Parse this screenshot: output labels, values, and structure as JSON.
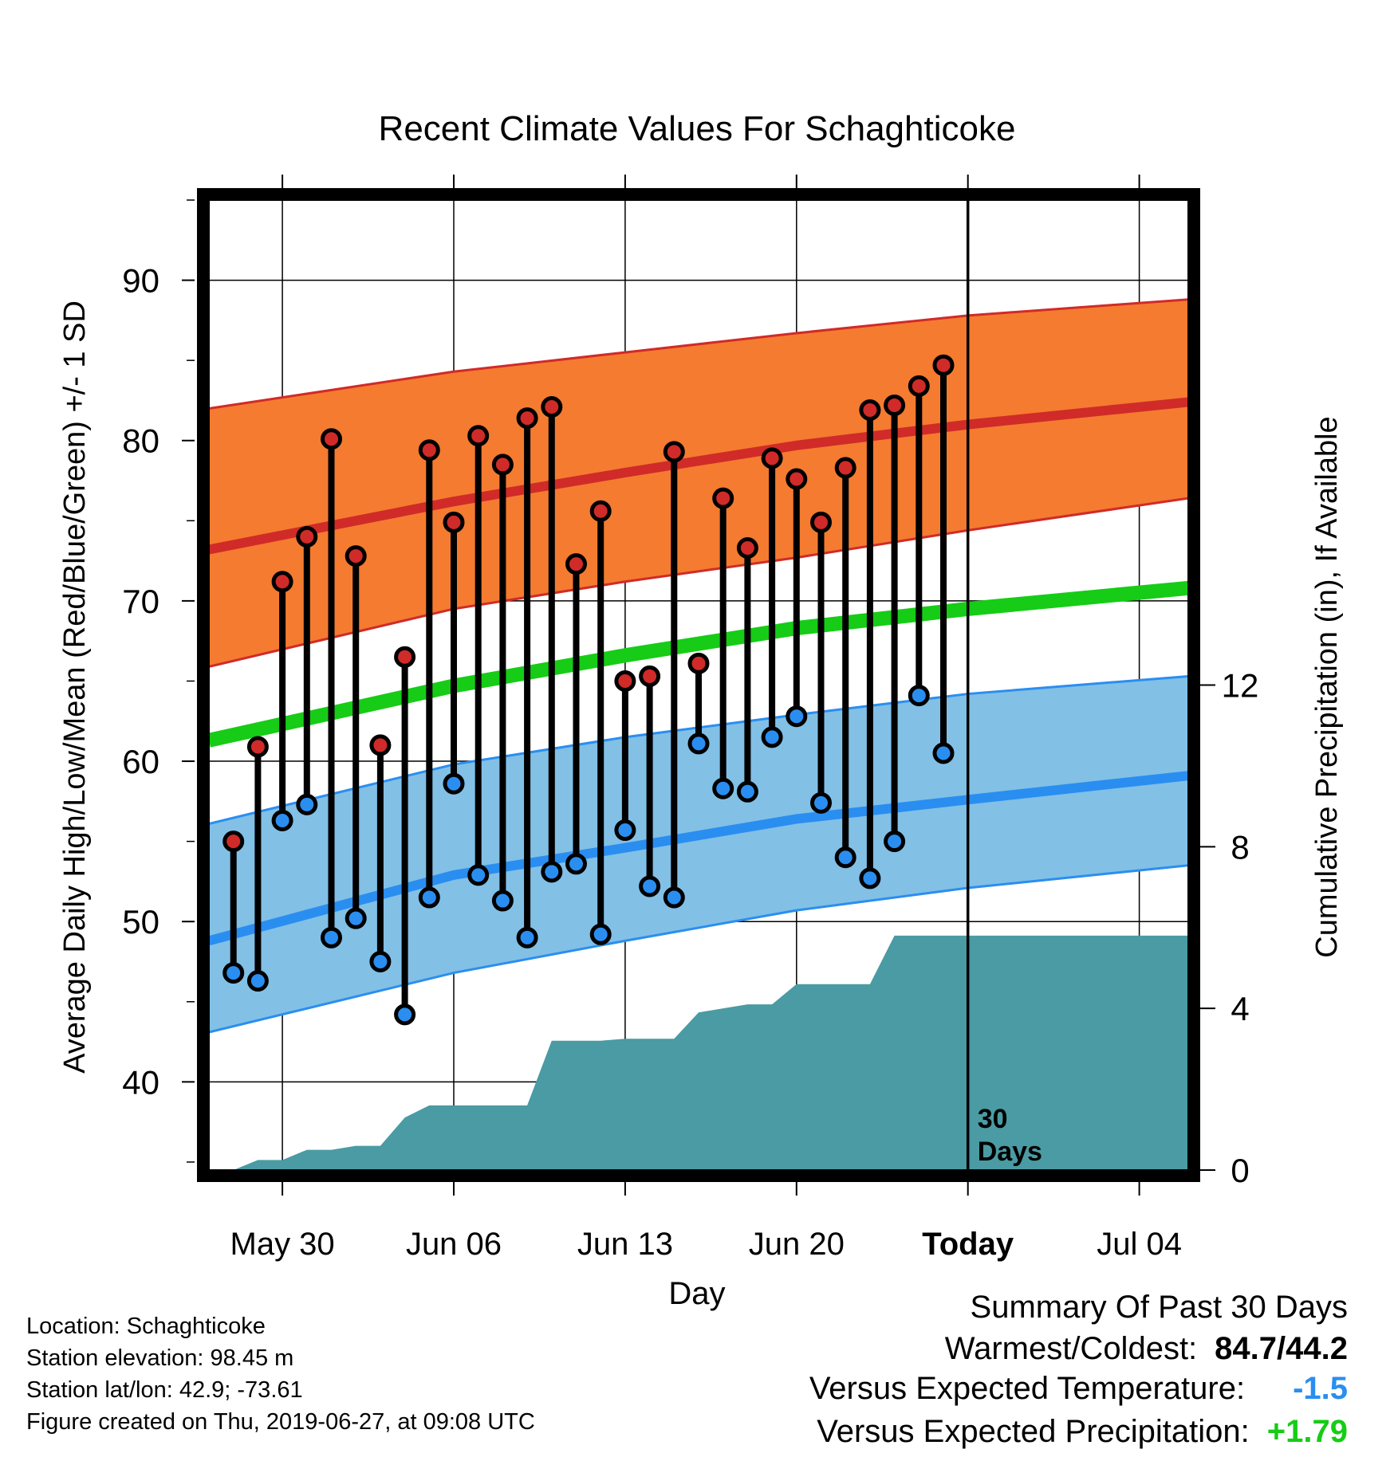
{
  "chart_data": {
    "type": "line",
    "title": "Recent Climate Values For Schaghticoke",
    "xlabel": "Day",
    "ylabel": "Average Daily High/Low/Mean (Red/Blue/Green) +/- 1 SD",
    "y2label": "Cumulative Precipitation (in), If Available",
    "x_range": [
      "2019-05-27",
      "2019-07-06"
    ],
    "ylim": [
      34.5,
      95
    ],
    "y2lim": [
      0,
      24
    ],
    "grid": true,
    "x_ticks": [
      {
        "date": "2019-05-30",
        "label": "May 30"
      },
      {
        "date": "2019-06-06",
        "label": "Jun 06"
      },
      {
        "date": "2019-06-13",
        "label": "Jun 13"
      },
      {
        "date": "2019-06-20",
        "label": "Jun 20"
      },
      {
        "date": "2019-06-27",
        "label": "Today"
      },
      {
        "date": "2019-07-04",
        "label": "Jul 04"
      }
    ],
    "y_ticks": [
      40,
      50,
      60,
      70,
      80,
      90
    ],
    "y2_ticks": [
      0,
      4,
      8,
      12
    ],
    "today_marker": {
      "date": "2019-06-27",
      "label_line1": "30",
      "label_line2": "Days"
    },
    "colors": {
      "high_band": "#f47b30",
      "high_line": "#d02b28",
      "low_band": "#82c0e6",
      "low_line": "#2a8ef0",
      "mean_line": "#16cc16",
      "precip": "#4a9ba3",
      "high_dot": "#d02b28",
      "low_dot": "#2a8ef0"
    },
    "normals": {
      "x": [
        "2019-05-27",
        "2019-06-06",
        "2019-06-13",
        "2019-06-20",
        "2019-06-27",
        "2019-07-06"
      ],
      "high_mean": [
        73.2,
        76.2,
        78.0,
        79.7,
        81.0,
        82.4
      ],
      "high_upper": [
        82.0,
        84.3,
        85.5,
        86.7,
        87.8,
        88.8
      ],
      "high_lower": [
        65.9,
        69.5,
        71.2,
        72.7,
        74.4,
        76.4
      ],
      "mean": [
        61.3,
        64.7,
        66.6,
        68.3,
        69.5,
        70.8
      ],
      "low_mean": [
        48.8,
        52.9,
        54.6,
        56.4,
        57.6,
        59.1
      ],
      "low_upper": [
        56.1,
        59.8,
        61.5,
        62.9,
        64.2,
        65.3
      ],
      "low_lower": [
        43.1,
        46.8,
        48.8,
        50.7,
        52.1,
        53.5
      ]
    },
    "days": [
      "2019-05-28",
      "2019-05-29",
      "2019-05-30",
      "2019-05-31",
      "2019-06-01",
      "2019-06-02",
      "2019-06-03",
      "2019-06-04",
      "2019-06-05",
      "2019-06-06",
      "2019-06-07",
      "2019-06-08",
      "2019-06-09",
      "2019-06-10",
      "2019-06-11",
      "2019-06-12",
      "2019-06-13",
      "2019-06-14",
      "2019-06-15",
      "2019-06-16",
      "2019-06-17",
      "2019-06-18",
      "2019-06-19",
      "2019-06-20",
      "2019-06-21",
      "2019-06-22",
      "2019-06-23",
      "2019-06-24",
      "2019-06-25",
      "2019-06-26"
    ],
    "series": [
      {
        "name": "High",
        "values": [
          55.0,
          60.9,
          71.2,
          74.0,
          80.1,
          72.8,
          61.0,
          66.5,
          79.4,
          74.9,
          80.3,
          78.5,
          81.4,
          82.1,
          72.3,
          75.6,
          65.0,
          65.3,
          79.3,
          66.1,
          76.4,
          73.3,
          78.9,
          77.6,
          74.9,
          78.3,
          81.9,
          82.2,
          83.4,
          84.7
        ]
      },
      {
        "name": "Low",
        "values": [
          46.8,
          46.3,
          56.3,
          57.3,
          49.0,
          50.2,
          47.5,
          44.2,
          51.5,
          58.6,
          52.9,
          51.3,
          49.0,
          53.1,
          53.6,
          49.2,
          55.7,
          52.2,
          51.5,
          61.1,
          58.3,
          58.1,
          61.5,
          62.8,
          57.4,
          54.0,
          52.7,
          55.0,
          64.1,
          60.5
        ]
      },
      {
        "name": "Cumulative Precipitation",
        "values": [
          0.0,
          0.25,
          0.25,
          0.5,
          0.5,
          0.6,
          0.6,
          1.3,
          1.6,
          1.6,
          1.6,
          1.6,
          1.6,
          3.2,
          3.2,
          3.2,
          3.25,
          3.25,
          3.25,
          3.9,
          4.0,
          4.1,
          4.1,
          4.6,
          4.6,
          4.6,
          4.6,
          5.8,
          5.8,
          5.8
        ]
      }
    ]
  },
  "location": {
    "line1": "Location: Schaghticoke",
    "line2": "Station elevation: 98.45 m",
    "line3": "Station lat/lon: 42.9; -73.61",
    "line4": "Figure created on Thu, 2019-06-27, at 09:08 UTC"
  },
  "summary": {
    "heading": "Summary Of Past 30 Days",
    "warm_cold_label": "Warmest/Coldest:",
    "warm_cold_value": "84.7/44.2",
    "temp_label": "Versus Expected Temperature:",
    "temp_value": "-1.5",
    "temp_color": "#2a8ef0",
    "precip_label": "Versus Expected Precipitation:",
    "precip_value": "+1.79",
    "precip_color": "#16cc16"
  }
}
